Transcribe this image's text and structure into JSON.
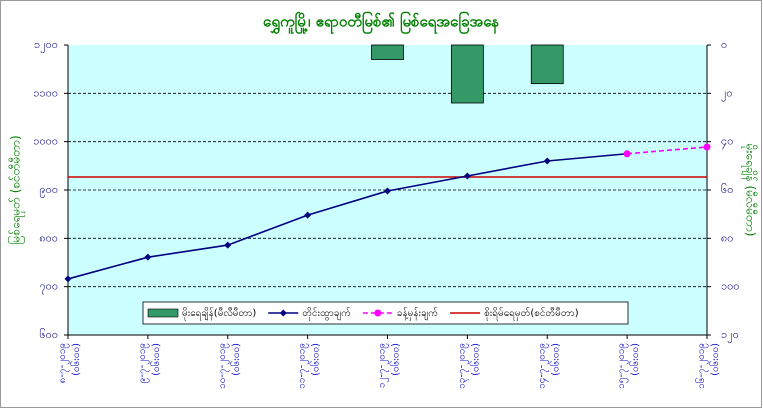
{
  "chart_data": {
    "type": "line",
    "title": "ရွှေကူမြို့၊ ဧရာဝတီမြစ်၏ မြစ်ရေအခြေအနေ",
    "y_label": "မြစ်ရေမှတ် (စင်တီမီတာ)",
    "y2_label": "မိုးရေချိန် (မီလီမီတာ)",
    "categories": [
      "၈-၇-၂၀၁၉",
      "၉-၇-၂၀၁၉",
      "၁၀-၇-၂၀၁၉",
      "၁၁-၇-၂၀၁၉",
      "၁၂-၇-၂၀၁၉",
      "၁၃-၇-၂၀၁၉",
      "၁၄-၇-၂၀၁၉",
      "၁၅-၇-၂၀၁၉",
      "၁၆-၇-၂၀၁၉"
    ],
    "category_times": [
      "(၀၆း၀၀)",
      "(၀၆း၀၀)",
      "(၀၆း၀၀)",
      "(၀၆း၀၀)",
      "(၀၆း၀၀)",
      "(၀၆း၀၀)",
      "(၀၆း၀၀)",
      "(၀၆း၀၀)",
      "(၀၆း၀၀)"
    ],
    "ylim": [
      600,
      1200
    ],
    "yticks": [
      {
        "value": 600,
        "label": "၆၀၀"
      },
      {
        "value": 700,
        "label": "၇၀၀"
      },
      {
        "value": 800,
        "label": "၈၀၀"
      },
      {
        "value": 900,
        "label": "၉၀၀"
      },
      {
        "value": 1000,
        "label": "၁၀၀၀"
      },
      {
        "value": 1100,
        "label": "၁၁၀၀"
      },
      {
        "value": 1200,
        "label": "၁၂၀၀"
      }
    ],
    "y2lim": [
      0,
      120
    ],
    "y2_inverted": true,
    "y2ticks": [
      {
        "value": 0,
        "label": "၀"
      },
      {
        "value": 20,
        "label": "၂၀"
      },
      {
        "value": 40,
        "label": "၄၀"
      },
      {
        "value": 60,
        "label": "၆၀"
      },
      {
        "value": 80,
        "label": "၈၀"
      },
      {
        "value": 100,
        "label": "၁၀၀"
      },
      {
        "value": 120,
        "label": "၁၂၀"
      }
    ],
    "grid": true,
    "series": [
      {
        "name": "မိုးရေချိန်(မီလီမီတာ)",
        "type": "bar",
        "axis": "y2",
        "color": "#339966",
        "values": [
          null,
          null,
          null,
          null,
          6,
          24,
          16,
          null,
          null
        ]
      },
      {
        "name": "တိုင်းထွာချက်",
        "type": "line",
        "color": "#000080",
        "values": [
          716,
          761,
          786,
          848,
          898,
          929,
          960,
          975,
          null
        ]
      },
      {
        "name": "ခန့်မှန်းချက်",
        "type": "line",
        "dashed": true,
        "color": "#ff00ff",
        "values": [
          null,
          null,
          null,
          null,
          null,
          null,
          null,
          975,
          989
        ]
      }
    ],
    "reference_lines": [
      {
        "name": "စိုးရိမ်ရေမှတ်(စင်တီမီတာ)",
        "value": 927,
        "color": "#cc0000"
      }
    ]
  }
}
